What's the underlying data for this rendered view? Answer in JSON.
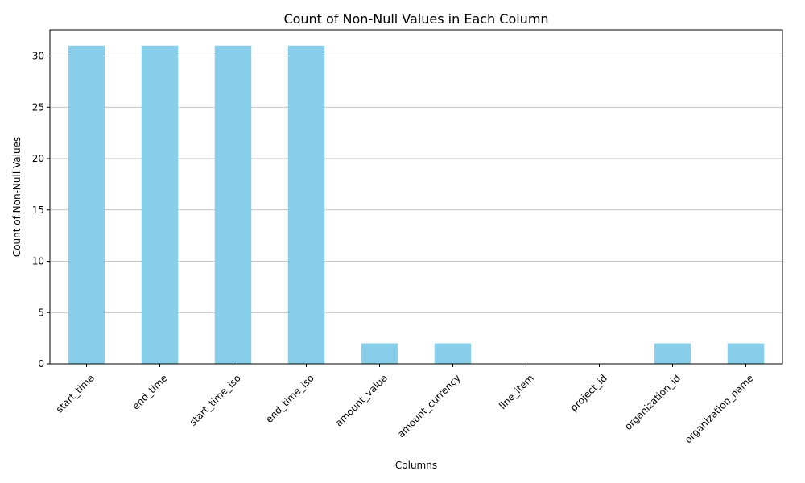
{
  "chart_data": {
    "type": "bar",
    "title": "Count of Non-Null Values in Each Column",
    "xlabel": "Columns",
    "ylabel": "Count of Non-Null Values",
    "categories": [
      "start_time",
      "end_time",
      "start_time_iso",
      "end_time_iso",
      "amount_value",
      "amount_currency",
      "line_item",
      "project_id",
      "organization_id",
      "organization_name"
    ],
    "values": [
      31,
      31,
      31,
      31,
      2,
      2,
      0,
      0,
      2,
      2
    ],
    "ylim": [
      0,
      32.55
    ],
    "yticks": [
      0,
      5,
      10,
      15,
      20,
      25,
      30
    ],
    "grid": "y",
    "bar_color": "#87ceeb",
    "grid_color": "#b0b0b0",
    "x_tick_rotation": 45
  }
}
